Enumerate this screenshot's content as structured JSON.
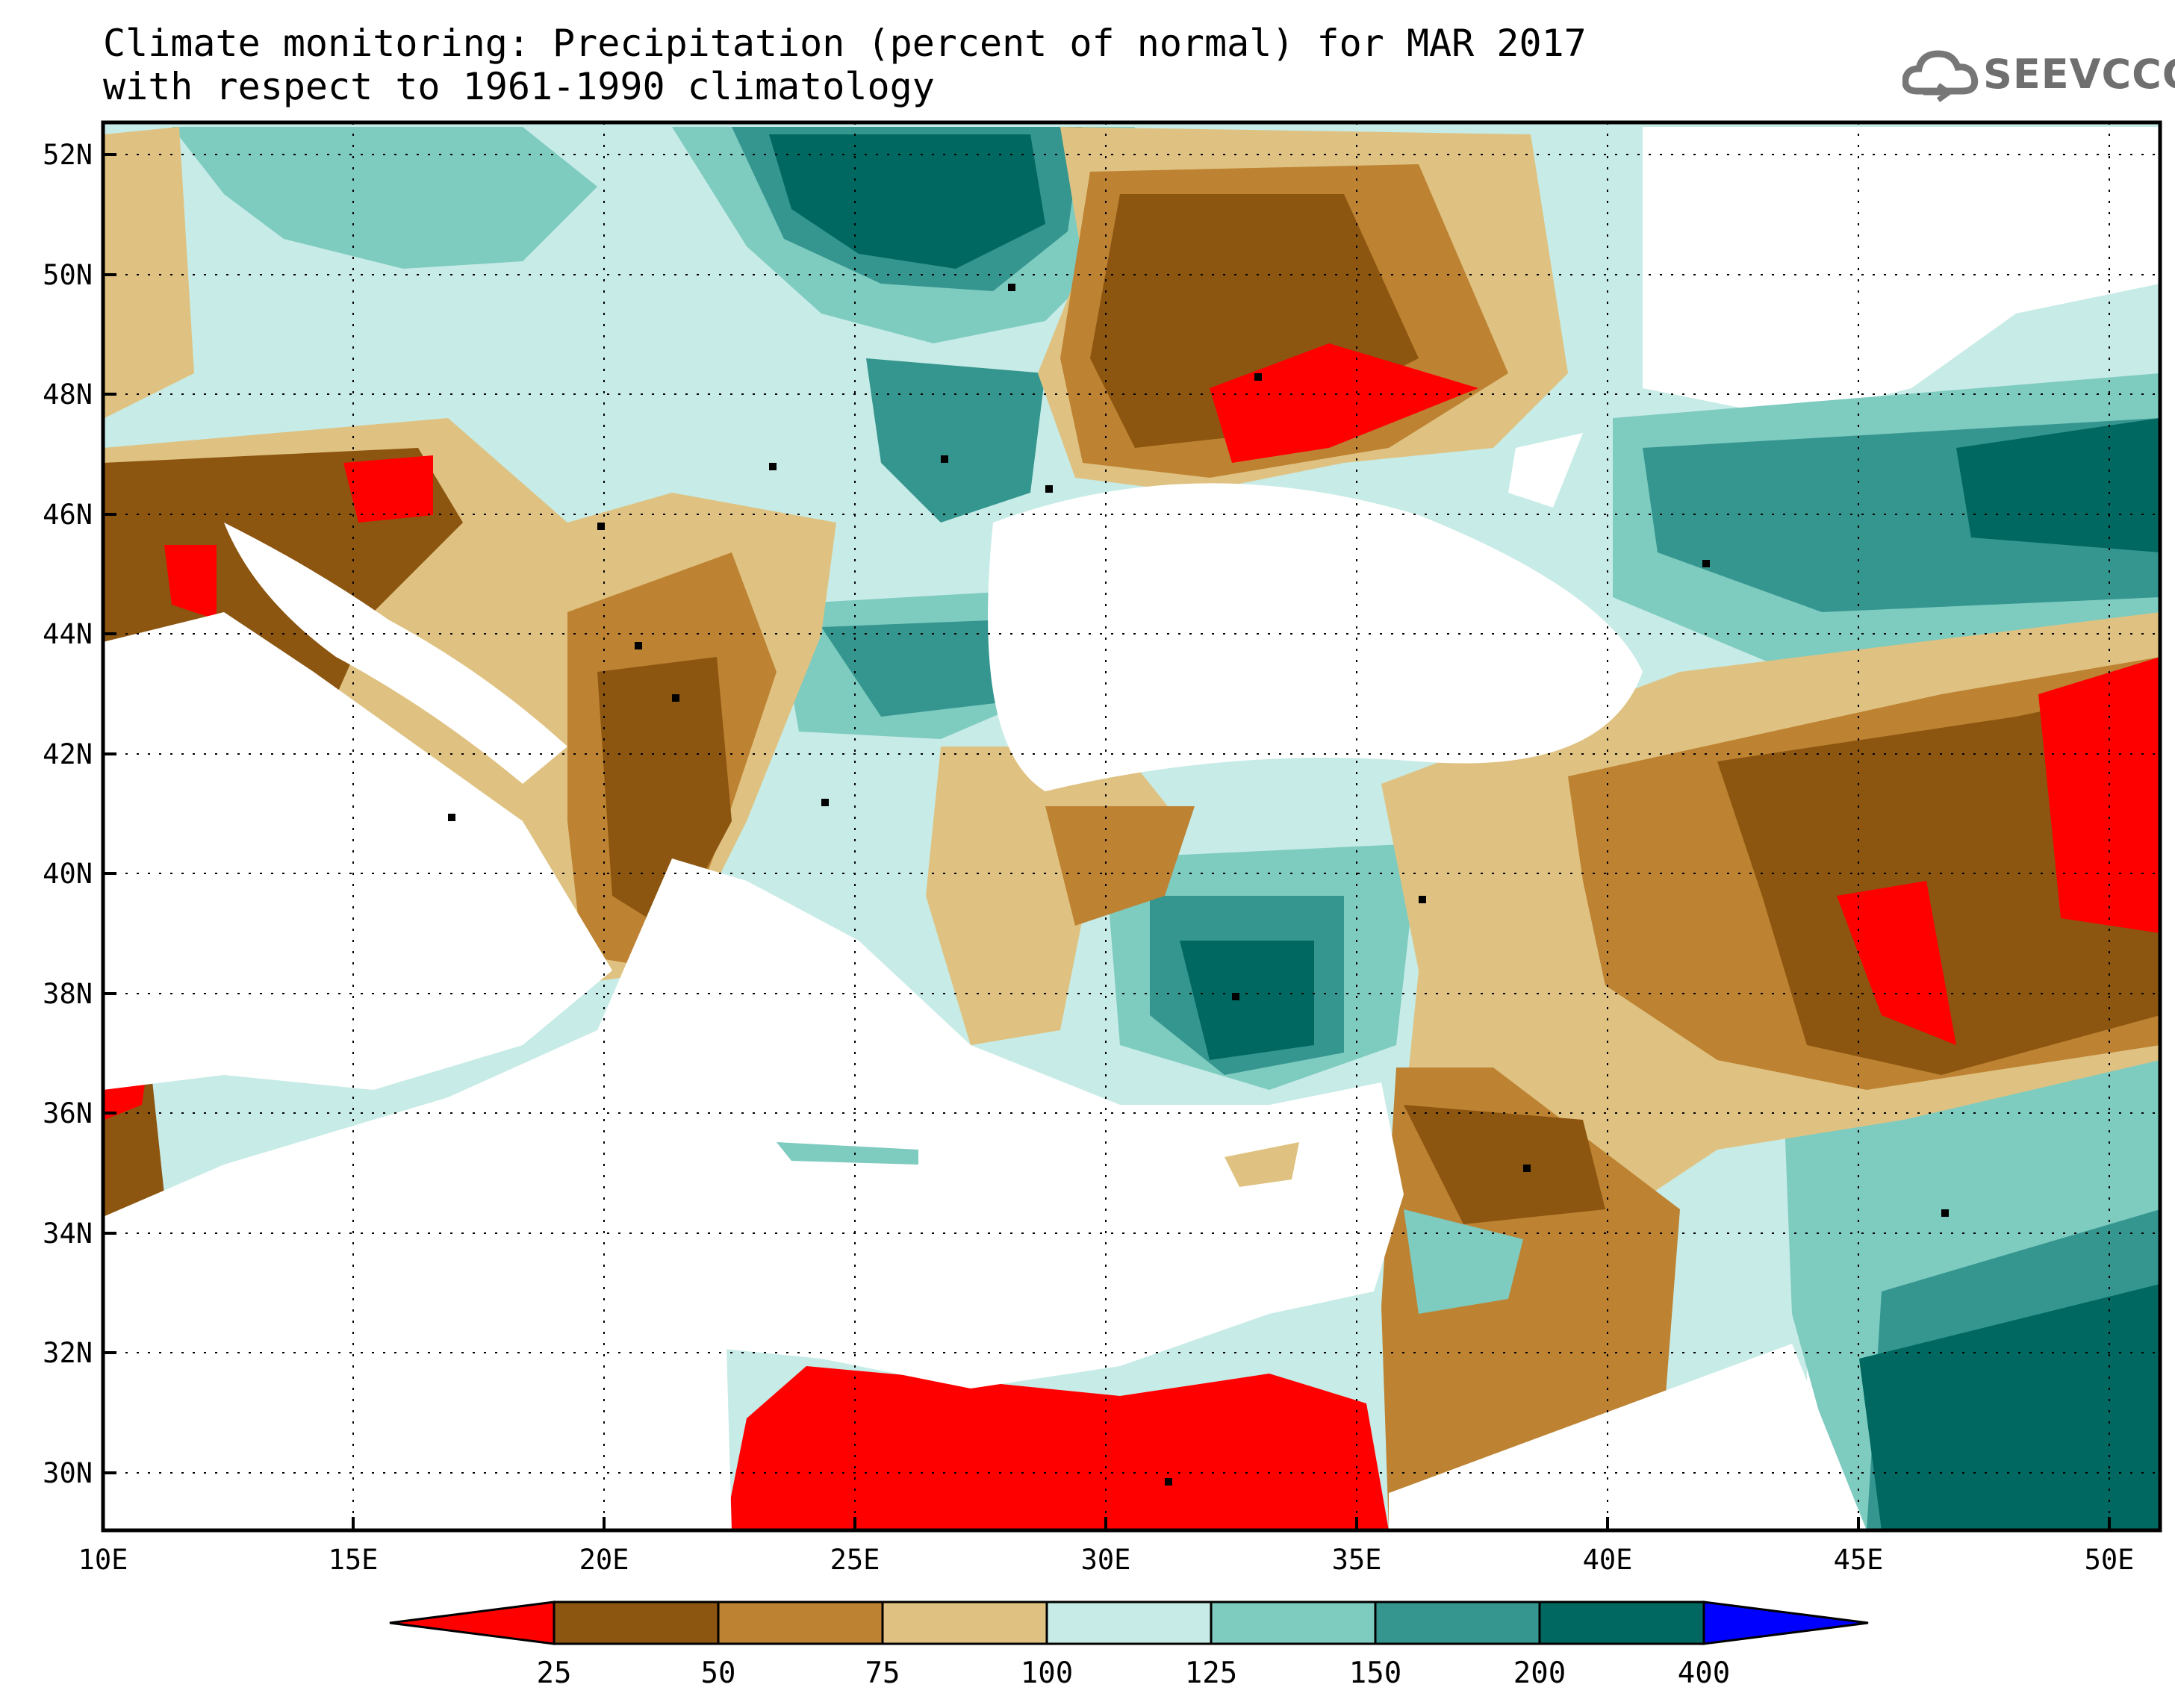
{
  "title": {
    "line1": "Climate monitoring: Precipitation (percent of normal) for MAR 2017",
    "line2": "with respect to 1961-1990 climatology"
  },
  "logo": {
    "text": "SEEVCCC",
    "icon": "cloud-icon"
  },
  "map": {
    "lon_range": [
      10,
      51
    ],
    "lat_range": [
      29,
      52.5
    ],
    "x_ticks": [
      "10E",
      "15E",
      "20E",
      "25E",
      "30E",
      "35E",
      "40E",
      "45E",
      "50E"
    ],
    "y_ticks": [
      "30N",
      "32N",
      "34N",
      "36N",
      "38N",
      "40N",
      "42N",
      "44N",
      "46N",
      "48N",
      "50N",
      "52N"
    ],
    "grid": true
  },
  "colorbar": {
    "labels": [
      "25",
      "50",
      "75",
      "100",
      "125",
      "150",
      "200",
      "400"
    ],
    "colors": [
      "#ff0000",
      "#8c5510",
      "#bd8232",
      "#dfc281",
      "#c7ebe6",
      "#7ecbc0",
      "#359690",
      "#006860",
      "#0000ff"
    ],
    "under_color": "#ff0000",
    "over_color": "#0000ff"
  },
  "palette": {
    "sea": "#ffffff",
    "land_missing": "#ffffff",
    "border": "#000000",
    "station": "#000000"
  }
}
